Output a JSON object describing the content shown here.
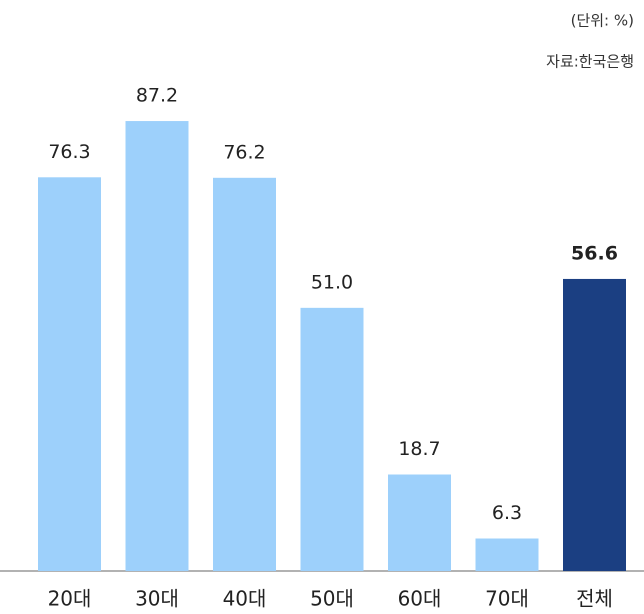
{
  "chart_data": {
    "type": "bar",
    "unit_note": "(단위: %)",
    "source": "자료:한국은행",
    "categories": [
      "20대",
      "30대",
      "40대",
      "50대",
      "60대",
      "70대",
      "전체"
    ],
    "values": [
      76.3,
      87.2,
      76.2,
      51.0,
      18.7,
      6.3,
      56.6
    ],
    "value_labels": [
      "76.3",
      "87.2",
      "76.2",
      "51.0",
      "18.7",
      "6.3",
      "56.6"
    ],
    "colors": [
      "#9dd0fb",
      "#9dd0fb",
      "#9dd0fb",
      "#9dd0fb",
      "#9dd0fb",
      "#9dd0fb",
      "#1b3f82"
    ],
    "ylim": [
      0,
      100
    ],
    "grid": false
  }
}
